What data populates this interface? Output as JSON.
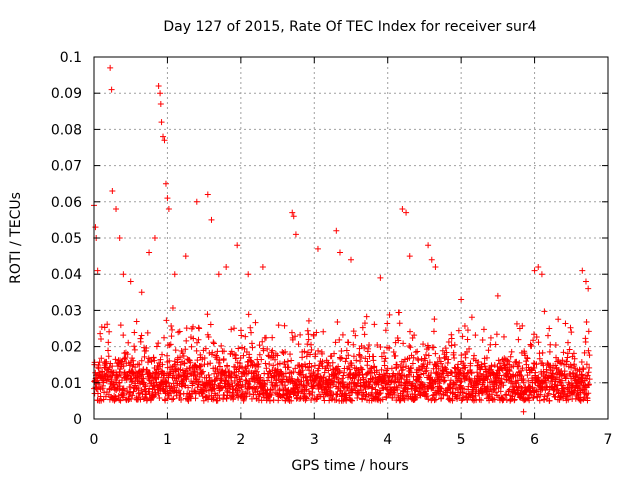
{
  "chart_data": {
    "type": "scatter",
    "title": "Day 127 of 2015, Rate Of TEC Index for receiver sur4",
    "xlabel": "GPS time / hours",
    "ylabel": "ROTI / TECUs",
    "xlim": [
      0,
      7
    ],
    "ylim": [
      0,
      0.1
    ],
    "xticks": [
      "0",
      "1",
      "2",
      "3",
      "4",
      "5",
      "6",
      "7"
    ],
    "yticks": [
      "0",
      "0.01",
      "0.02",
      "0.03",
      "0.04",
      "0.05",
      "0.06",
      "0.07",
      "0.08",
      "0.09",
      "0.1"
    ],
    "grid": true,
    "marker": "plus",
    "color": "#ff0000",
    "x_range_hours": [
      0,
      6.75
    ],
    "baseline_band": [
      0.005,
      0.02
    ],
    "series": [
      {
        "name": "ROTI",
        "notable_points": [
          {
            "x": 0.0,
            "y": 0.059
          },
          {
            "x": 0.02,
            "y": 0.053
          },
          {
            "x": 0.03,
            "y": 0.05
          },
          {
            "x": 0.05,
            "y": 0.041
          },
          {
            "x": 0.22,
            "y": 0.097
          },
          {
            "x": 0.24,
            "y": 0.091
          },
          {
            "x": 0.25,
            "y": 0.063
          },
          {
            "x": 0.3,
            "y": 0.058
          },
          {
            "x": 0.35,
            "y": 0.05
          },
          {
            "x": 0.4,
            "y": 0.04
          },
          {
            "x": 0.5,
            "y": 0.038
          },
          {
            "x": 0.65,
            "y": 0.035
          },
          {
            "x": 0.75,
            "y": 0.046
          },
          {
            "x": 0.83,
            "y": 0.05
          },
          {
            "x": 0.88,
            "y": 0.092
          },
          {
            "x": 0.9,
            "y": 0.09
          },
          {
            "x": 0.91,
            "y": 0.087
          },
          {
            "x": 0.92,
            "y": 0.082
          },
          {
            "x": 0.94,
            "y": 0.078
          },
          {
            "x": 0.96,
            "y": 0.077
          },
          {
            "x": 0.98,
            "y": 0.065
          },
          {
            "x": 1.0,
            "y": 0.061
          },
          {
            "x": 1.02,
            "y": 0.058
          },
          {
            "x": 1.1,
            "y": 0.04
          },
          {
            "x": 1.25,
            "y": 0.045
          },
          {
            "x": 1.4,
            "y": 0.06
          },
          {
            "x": 1.55,
            "y": 0.062
          },
          {
            "x": 1.6,
            "y": 0.055
          },
          {
            "x": 1.7,
            "y": 0.04
          },
          {
            "x": 1.8,
            "y": 0.042
          },
          {
            "x": 1.95,
            "y": 0.048
          },
          {
            "x": 2.1,
            "y": 0.04
          },
          {
            "x": 2.3,
            "y": 0.042
          },
          {
            "x": 2.7,
            "y": 0.057
          },
          {
            "x": 2.72,
            "y": 0.056
          },
          {
            "x": 2.75,
            "y": 0.051
          },
          {
            "x": 3.05,
            "y": 0.047
          },
          {
            "x": 3.3,
            "y": 0.052
          },
          {
            "x": 3.35,
            "y": 0.046
          },
          {
            "x": 3.5,
            "y": 0.044
          },
          {
            "x": 3.9,
            "y": 0.039
          },
          {
            "x": 4.2,
            "y": 0.058
          },
          {
            "x": 4.25,
            "y": 0.057
          },
          {
            "x": 4.3,
            "y": 0.045
          },
          {
            "x": 4.55,
            "y": 0.048
          },
          {
            "x": 4.6,
            "y": 0.044
          },
          {
            "x": 4.65,
            "y": 0.042
          },
          {
            "x": 5.0,
            "y": 0.033
          },
          {
            "x": 5.5,
            "y": 0.034
          },
          {
            "x": 5.8,
            "y": 0.025
          },
          {
            "x": 6.0,
            "y": 0.041
          },
          {
            "x": 6.05,
            "y": 0.042
          },
          {
            "x": 6.1,
            "y": 0.04
          },
          {
            "x": 6.2,
            "y": 0.025
          },
          {
            "x": 6.5,
            "y": 0.024
          },
          {
            "x": 6.65,
            "y": 0.041
          },
          {
            "x": 6.7,
            "y": 0.038
          },
          {
            "x": 6.73,
            "y": 0.036
          },
          {
            "x": 6.75,
            "y": 0.011
          },
          {
            "x": 5.85,
            "y": 0.002
          }
        ]
      }
    ]
  }
}
